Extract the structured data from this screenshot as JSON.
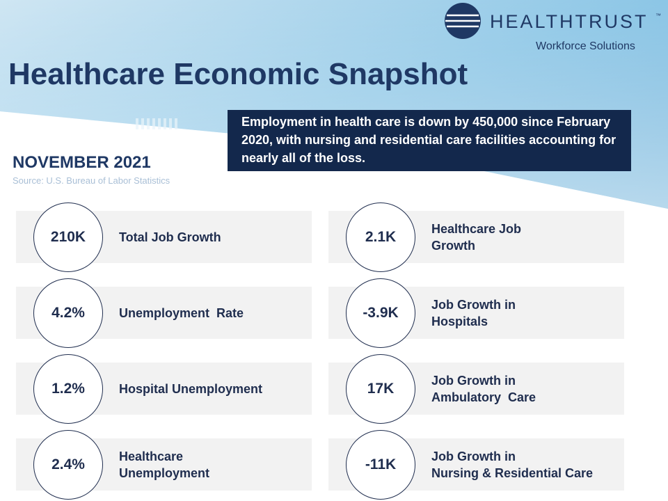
{
  "header": {
    "title": "Healthcare Economic Snapshot"
  },
  "logo": {
    "name": "HEALTHTRUST",
    "trademark": "™",
    "subtitle": "Workforce Solutions"
  },
  "date": "NOVEMBER 2021",
  "source": "Source: U.S. Bureau of Labor Statistics",
  "callout": "Employment in health care is down by 450,000 since February 2020, with nursing and residential care facilities accounting for nearly all of the loss.",
  "cards": [
    {
      "value": "210K",
      "lines": [
        "Total Job Growth"
      ]
    },
    {
      "value": "2.1K",
      "lines": [
        "Healthcare Job",
        "Growth"
      ]
    },
    {
      "value": "4.2%",
      "lines": [
        "Unemployment  Rate"
      ]
    },
    {
      "value": "-3.9K",
      "lines": [
        "Job Growth in",
        "Hospitals"
      ]
    },
    {
      "value": "1.2%",
      "lines": [
        "Hospital Unemployment"
      ]
    },
    {
      "value": "17K",
      "lines": [
        "Job Growth in",
        "Ambulatory  Care"
      ]
    },
    {
      "value": "2.4%",
      "lines": [
        "Healthcare",
        "Unemployment"
      ]
    },
    {
      "value": "-11K",
      "lines": [
        "Job Growth in",
        "Nursing & Residential Care"
      ]
    }
  ]
}
